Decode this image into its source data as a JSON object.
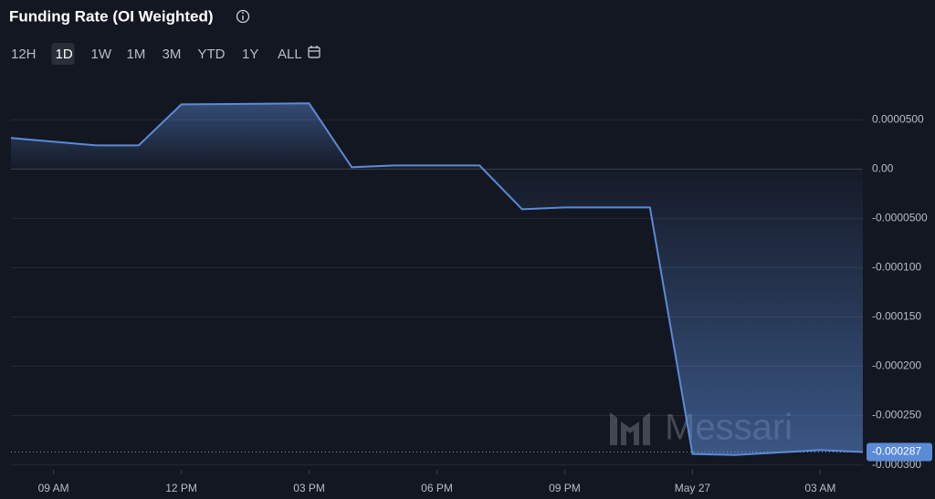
{
  "chart_data": {
    "type": "area",
    "title": "Funding Rate (OI Weighted)",
    "range_buttons": [
      "12H",
      "1D",
      "1W",
      "1M",
      "3M",
      "YTD",
      "1Y",
      "ALL"
    ],
    "active_range": "1D",
    "watermark": "Messari",
    "x": [
      8,
      10,
      11,
      12,
      15,
      16,
      17,
      19,
      20,
      21,
      23,
      24,
      25,
      27,
      28
    ],
    "xlim": [
      8,
      28
    ],
    "xticks": [
      {
        "value": 9,
        "label": "09 AM"
      },
      {
        "value": 12,
        "label": "12 PM"
      },
      {
        "value": 15,
        "label": "03 PM"
      },
      {
        "value": 18,
        "label": "06 PM"
      },
      {
        "value": 21,
        "label": "09 PM"
      },
      {
        "value": 24,
        "label": "May 27"
      },
      {
        "value": 27,
        "label": "03 AM"
      }
    ],
    "series": [
      {
        "name": "Funding Rate (OI Weighted)",
        "color": "#5b8bd6",
        "values": [
          3.15e-05,
          2.4e-05,
          2.4e-05,
          6.57e-05,
          6.67e-05,
          1.9e-06,
          3.7e-06,
          3.7e-06,
          -4.07e-05,
          -3.89e-05,
          -3.89e-05,
          -0.000289,
          -0.00029,
          -0.000285,
          -0.000287
        ],
        "value_labels": [
          null,
          null,
          null,
          null,
          null,
          null,
          null,
          null,
          null,
          null,
          null,
          null,
          null,
          null,
          "-0.000287"
        ]
      }
    ],
    "ylim": [
      -0.000305,
      9.75e-05
    ],
    "yticks": [
      {
        "value": 5e-05,
        "label": "0.0000500"
      },
      {
        "value": 0,
        "label": "0.00"
      },
      {
        "value": -5e-05,
        "label": "-0.0000500"
      },
      {
        "value": -0.0001,
        "label": "-0.000100"
      },
      {
        "value": -0.00015,
        "label": "-0.000150"
      },
      {
        "value": -0.0002,
        "label": "-0.000200"
      },
      {
        "value": -0.00025,
        "label": "-0.000250"
      },
      {
        "value": -0.0003,
        "label": "-0.000300"
      }
    ],
    "grid": true
  }
}
